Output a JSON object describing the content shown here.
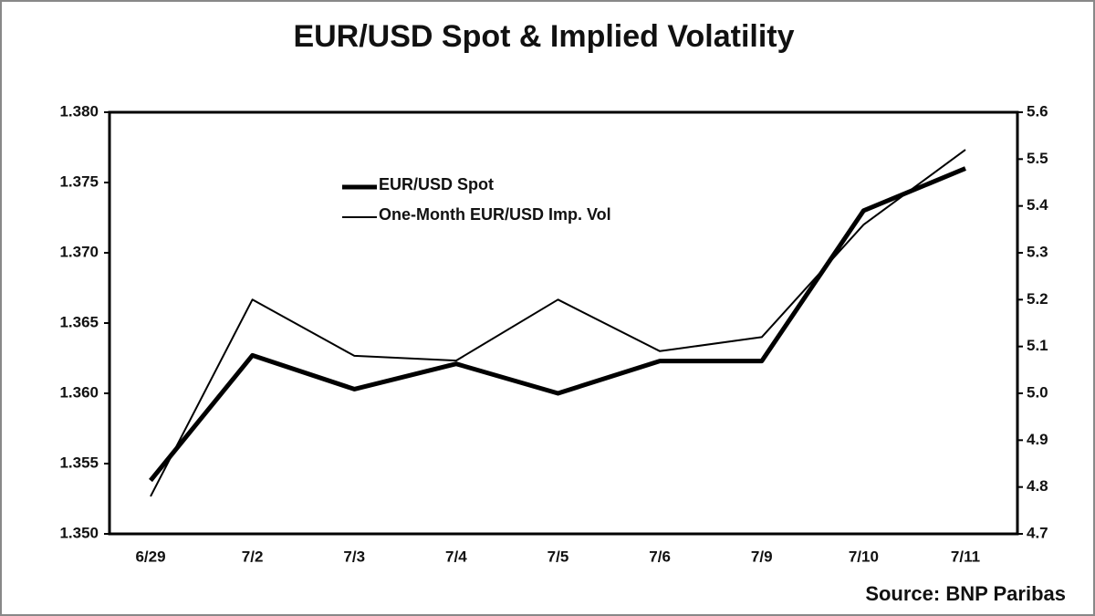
{
  "chart_data": {
    "type": "line",
    "title": "EUR/USD Spot & Implied Volatility",
    "source": "Source: BNP Paribas",
    "categories": [
      "6/29",
      "7/2",
      "7/3",
      "7/4",
      "7/5",
      "7/6",
      "7/9",
      "7/10",
      "7/11"
    ],
    "series": [
      {
        "name": "EUR/USD Spot",
        "color": "#000000",
        "linewidth": 5,
        "axis": "y",
        "values": [
          1.3538,
          1.3627,
          1.3603,
          1.3621,
          1.36,
          1.3623,
          1.3623,
          1.373,
          1.376
        ]
      },
      {
        "name": "One-Month EUR/USD Imp. Vol",
        "color": "#000000",
        "linewidth": 2,
        "axis": "y2",
        "values": [
          4.78,
          5.2,
          5.08,
          5.07,
          5.2,
          5.09,
          5.12,
          5.36,
          5.52
        ]
      }
    ],
    "ylim": [
      1.35,
      1.38
    ],
    "yticks": [
      {
        "value": 1.35,
        "label": "1.350"
      },
      {
        "value": 1.355,
        "label": "1.355"
      },
      {
        "value": 1.36,
        "label": "1.360"
      },
      {
        "value": 1.365,
        "label": "1.365"
      },
      {
        "value": 1.37,
        "label": "1.370"
      },
      {
        "value": 1.375,
        "label": "1.375"
      },
      {
        "value": 1.38,
        "label": "1.380"
      }
    ],
    "y2lim": [
      4.7,
      5.6
    ],
    "y2ticks": [
      4.7,
      4.8,
      4.9,
      {
        "value": 5,
        "label": "5.0"
      },
      5.1,
      5.2,
      5.3,
      5.4,
      5.5,
      5.6
    ],
    "legend": "upper-center",
    "grid": false
  }
}
